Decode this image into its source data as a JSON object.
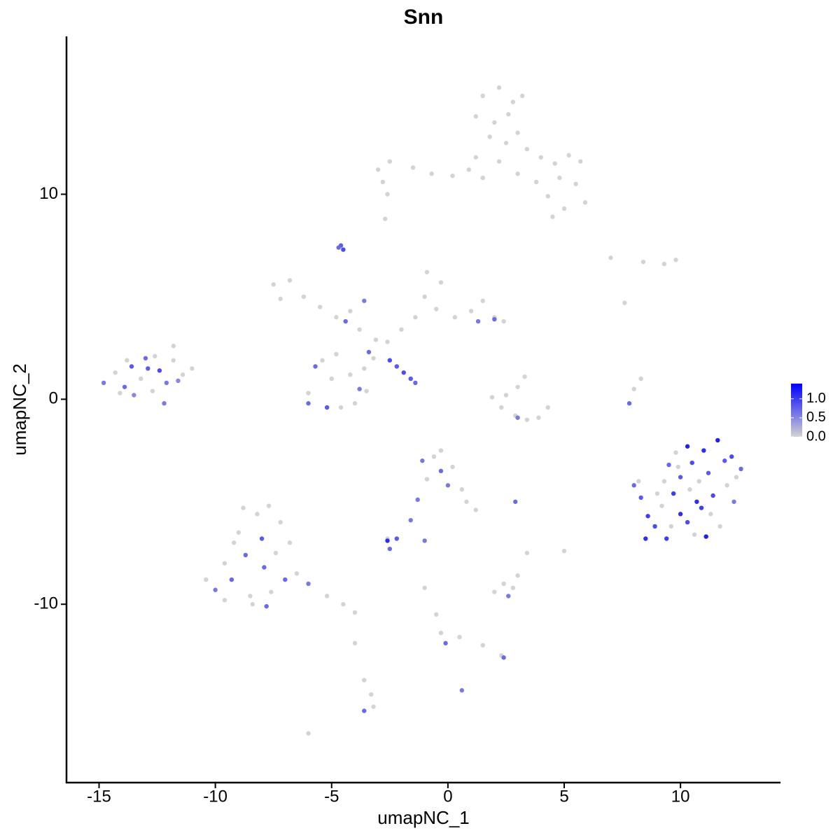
{
  "chart_data": {
    "type": "scatter",
    "title": "Snn",
    "x_label": "umapNC_1",
    "y_label": "umapNC_2",
    "xlim": [
      -16.4,
      14.3
    ],
    "ylim": [
      -18.7,
      17.7
    ],
    "xticks": [
      -15,
      -10,
      -5,
      0,
      5,
      10
    ],
    "yticks": [
      -10,
      0,
      10
    ],
    "colorbar": {
      "low": "#d3d3d3",
      "high": "#0000ff",
      "lim": [
        0,
        1.4
      ],
      "ticks": [
        {
          "value": 0,
          "label": "0.0"
        },
        {
          "value": 0.5,
          "label": "0.5"
        },
        {
          "value": 1,
          "label": "1.0"
        }
      ]
    },
    "x": [
      1.5,
      2.2,
      2.8,
      1.2,
      2.0,
      2.6,
      3.2,
      1.8,
      2.5,
      3.0,
      3.4,
      4.0,
      4.6,
      5.2,
      5.7,
      4.8,
      5.5,
      5.9,
      5.0,
      4.3,
      3.8,
      3.0,
      1.5,
      0.9,
      0.2,
      -0.7,
      -1.5,
      -2.5,
      -3.0,
      -2.8,
      -2.6,
      -2.7,
      1.2,
      4.5,
      2.2,
      -14.8,
      -14.3,
      -13.9,
      -13.6,
      -13.2,
      -13.0,
      -12.7,
      -12.4,
      -12.1,
      -11.8,
      -11.4,
      -11.0,
      -11.8,
      -13.5,
      -12.9,
      -12.2,
      -13.8,
      -12.6,
      -14.1,
      -11.6,
      -7.5,
      -6.8,
      -7.2,
      -6.2,
      -5.5,
      -4.8,
      -4.2,
      -3.6,
      -4.4,
      -3.8,
      -3.1,
      -2.6,
      -2.0,
      -1.4,
      -1.0,
      -0.9,
      -0.3,
      -0.5,
      0.3,
      1.0,
      1.5,
      2.0,
      2.4,
      1.3,
      2.0,
      -3.4,
      -3.6,
      -3.8,
      -4.2,
      -5.0,
      -5.7,
      -6.0,
      -6.0,
      -5.2,
      -4.6,
      -4.0,
      -3.5,
      -4.8,
      -5.4,
      -3.2,
      -4.6,
      -4.5,
      -4.7,
      -2.5,
      -2.2,
      -1.9,
      -1.6,
      -1.4,
      1.9,
      2.3,
      2.9,
      3.4,
      3.9,
      4.3,
      3.0,
      3.3,
      3.0,
      2.5,
      8.0,
      8.3,
      7.8,
      7.0,
      8.4,
      9.3,
      9.8,
      7.6,
      8.0,
      8.3,
      8.6,
      8.5,
      8.9,
      9.2,
      9.3,
      9.5,
      9.8,
      9.7,
      10.0,
      10.0,
      10.3,
      10.5,
      10.4,
      10.3,
      10.6,
      10.9,
      11.0,
      11.2,
      11.4,
      11.6,
      11.7,
      11.9,
      12.0,
      12.2,
      12.4,
      12.6,
      12.3,
      9.0,
      9.4,
      10.8,
      11.3,
      9.9,
      10.7,
      8.2,
      9.6,
      11.1,
      -10.4,
      -10.0,
      -9.6,
      -9.3,
      -9.0,
      -8.7,
      -8.5,
      -8.2,
      -8.0,
      -7.9,
      -7.6,
      -7.4,
      -7.2,
      -7.0,
      -6.8,
      -7.7,
      -8.8,
      -6.5,
      -6.0,
      -5.2,
      -4.5,
      -4.0,
      -9.6,
      -8.4,
      -7.8,
      -9.2,
      -1.1,
      -0.9,
      -0.6,
      -0.3,
      0.0,
      0.2,
      0.6,
      0.8,
      1.2,
      -0.3,
      -1.3,
      -1.6,
      -2.6,
      -2.6,
      -2.2,
      -2.5,
      -1.0,
      2.0,
      2.4,
      2.8,
      3.0,
      2.6,
      5.0,
      3.4,
      2.9,
      -0.5,
      -0.3,
      -0.1,
      0.5,
      1.5,
      2.3,
      2.4,
      -1.0,
      0.6,
      -4.0,
      -3.6,
      -3.3,
      -3.6,
      -3.2,
      -6.0
    ],
    "y": [
      14.8,
      15.2,
      14.5,
      13.8,
      13.5,
      13.9,
      14.8,
      12.8,
      12.5,
      13.0,
      12.2,
      11.8,
      11.5,
      11.9,
      11.6,
      10.8,
      10.5,
      9.6,
      9.3,
      9.9,
      10.6,
      11.0,
      10.8,
      11.2,
      10.9,
      11.0,
      11.3,
      11.6,
      11.2,
      10.6,
      10.0,
      8.8,
      11.8,
      8.9,
      11.6,
      0.8,
      1.3,
      0.6,
      1.6,
      1.0,
      2.0,
      0.4,
      1.4,
      0.8,
      1.9,
      1.2,
      1.5,
      2.6,
      0.2,
      1.5,
      -0.2,
      1.9,
      2.1,
      0.3,
      0.9,
      5.6,
      5.8,
      4.9,
      5.0,
      4.5,
      4.0,
      4.3,
      4.8,
      3.8,
      3.4,
      2.9,
      2.8,
      3.4,
      4.0,
      5.0,
      6.2,
      5.7,
      4.4,
      4.0,
      4.3,
      4.8,
      4.0,
      3.8,
      3.8,
      3.9,
      2.3,
      1.5,
      0.5,
      1.2,
      1.0,
      1.6,
      0.3,
      -0.2,
      -0.4,
      -0.4,
      -0.2,
      0.4,
      2.2,
      1.9,
      2.0,
      7.5,
      7.3,
      7.4,
      1.9,
      1.6,
      1.3,
      1.0,
      0.8,
      0.1,
      -0.4,
      -0.8,
      -1.0,
      -0.9,
      -0.4,
      0.6,
      1.1,
      -0.9,
      0.2,
      0.5,
      1.0,
      -0.2,
      6.9,
      6.7,
      6.6,
      6.8,
      4.7,
      -4.2,
      -4.8,
      -5.7,
      -6.8,
      -6.2,
      -5.2,
      -4.0,
      -3.2,
      -2.6,
      -4.6,
      -5.6,
      -3.8,
      -2.3,
      -3.1,
      -4.4,
      -6.0,
      -6.6,
      -5.3,
      -2.5,
      -3.6,
      -4.7,
      -2.0,
      -6.2,
      -3.0,
      -4.2,
      -2.8,
      -3.8,
      -3.4,
      -5.0,
      -4.6,
      -6.8,
      -4.0,
      -5.6,
      -3.3,
      -5.0,
      -4.0,
      -6.2,
      -6.7,
      -8.8,
      -9.3,
      -8.0,
      -8.8,
      -6.5,
      -7.6,
      -9.6,
      -5.6,
      -6.8,
      -8.2,
      -9.4,
      -7.5,
      -6.0,
      -8.8,
      -7.0,
      -5.2,
      -5.3,
      -8.5,
      -9.0,
      -9.6,
      -10.0,
      -10.4,
      -9.8,
      -10.0,
      -10.1,
      -7.0,
      -3.0,
      -3.9,
      -2.8,
      -3.5,
      -4.2,
      -3.3,
      -4.4,
      -5.0,
      -5.4,
      -2.5,
      -4.9,
      -5.9,
      -6.8,
      -6.9,
      -6.8,
      -7.3,
      -6.9,
      -9.4,
      -9.0,
      -9.2,
      -8.6,
      -9.6,
      -7.4,
      -7.5,
      -5.0,
      -10.5,
      -11.4,
      -11.9,
      -11.6,
      -12.0,
      -12.5,
      -12.6,
      -9.2,
      -14.2,
      -11.9,
      -13.7,
      -14.4,
      -15.2,
      -15.0,
      -16.3
    ],
    "values": [
      0,
      0,
      0,
      0,
      0,
      0,
      0,
      0,
      0,
      0,
      0,
      0,
      0,
      0,
      0,
      0,
      0,
      0,
      0,
      0,
      0,
      0,
      0,
      0,
      0,
      0,
      0,
      0,
      0,
      0,
      0,
      0,
      0,
      0,
      0,
      0.6,
      0,
      0.7,
      0.8,
      0,
      0.7,
      0,
      0.9,
      0.6,
      0,
      0,
      0,
      0,
      0.5,
      0.8,
      0.6,
      0,
      0,
      0,
      0.5,
      0,
      0,
      0,
      0,
      0,
      0,
      0,
      0.6,
      0.7,
      0,
      0,
      0,
      0,
      0,
      0,
      0,
      0,
      0,
      0,
      0,
      0,
      0,
      0,
      0.6,
      0.7,
      0.7,
      0,
      0.6,
      0,
      0,
      0.7,
      0,
      0.7,
      0.8,
      0,
      0,
      0,
      0,
      0,
      0,
      0.8,
      0.9,
      0.7,
      0.9,
      0.8,
      0.9,
      0.8,
      0.7,
      0,
      0,
      0,
      0,
      0,
      0,
      0,
      0,
      0.6,
      0,
      0,
      0,
      0.7,
      0,
      0,
      0,
      0,
      0,
      0.7,
      0.8,
      1.0,
      1.1,
      0.9,
      0,
      0,
      0.7,
      0,
      1.0,
      1.1,
      0.8,
      1.2,
      0.9,
      0,
      0.9,
      0,
      1.0,
      1.1,
      0.8,
      0.9,
      1.2,
      0,
      0.8,
      0,
      0.9,
      0,
      0.7,
      0.6,
      0,
      1.0,
      0,
      0,
      0,
      1.1,
      0,
      0,
      1.2,
      0,
      0.6,
      0,
      0.7,
      0,
      0.7,
      0,
      0,
      0.8,
      0.7,
      0,
      0,
      0,
      0.7,
      0,
      0,
      0,
      0,
      0.6,
      0,
      0,
      0,
      0,
      0,
      0.7,
      0,
      0.6,
      0,
      0,
      0.7,
      0.6,
      0,
      0,
      0,
      0,
      0,
      0.6,
      0.6,
      0,
      1.1,
      0.8,
      0.7,
      0.6,
      0,
      0,
      0,
      0,
      0.6,
      0,
      0,
      0.7,
      0,
      0,
      0.7,
      0,
      0,
      0,
      0.7,
      0,
      0.6,
      0,
      0,
      0,
      0.7,
      0,
      0
    ]
  }
}
